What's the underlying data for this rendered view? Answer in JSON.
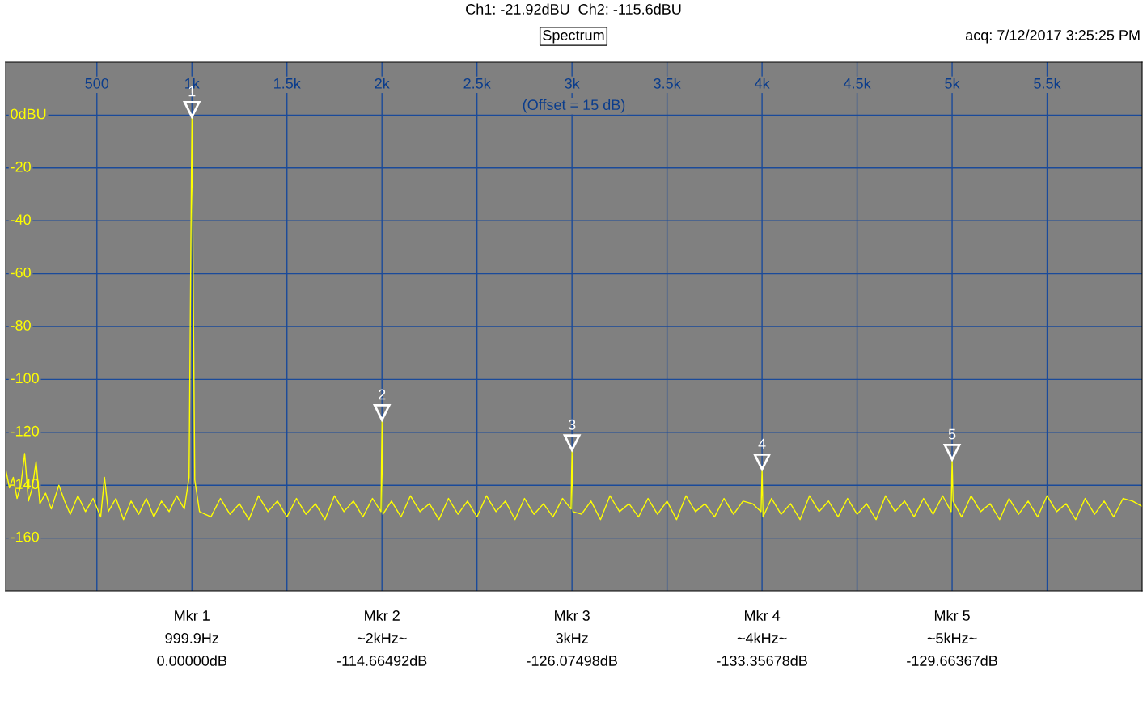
{
  "chart_data": {
    "type": "line",
    "title": "Ch1: -21.92dBU  Ch2: -115.6dBU",
    "subtitle": "Spectrum",
    "annotations": [
      "(Offset = 15 dB)",
      "acq: 7/12/2017 3:25:25 PM",
      "Mkr 1",
      "999.9Hz",
      "0.00000dB",
      "Mkr 2",
      "~2kHz~",
      "-114.66492dB",
      "Mkr 3",
      "3kHz",
      "-126.07498dB",
      "Mkr 4",
      "~4kHz~",
      "-133.35678dB",
      "Mkr 5",
      "~5kHz~",
      "-129.66367dB",
      {
        "text": "1",
        "x": 999.9,
        "y": 0
      },
      {
        "text": "2",
        "x": 2000,
        "y": -114.66492
      },
      {
        "text": "3",
        "x": 3000,
        "y": -126.07498
      },
      {
        "text": "4",
        "x": 4000,
        "y": -133.35678
      },
      {
        "text": "5",
        "x": 5000,
        "y": -129.66367
      }
    ],
    "series": [
      {
        "color": "#ffff00",
        "x": [
          20,
          40,
          60,
          80,
          100,
          120,
          140,
          160,
          180,
          200,
          230,
          260,
          300,
          330,
          360,
          400,
          440,
          480,
          520,
          540,
          560,
          600,
          640,
          680,
          720,
          760,
          800,
          840,
          880,
          920,
          960,
          985,
          999.9,
          1015,
          1040,
          1100,
          1150,
          1200,
          1250,
          1300,
          1350,
          1400,
          1450,
          1500,
          1550,
          1600,
          1650,
          1700,
          1750,
          1800,
          1850,
          1900,
          1950,
          1995,
          2000,
          2005,
          2050,
          2100,
          2150,
          2200,
          2250,
          2300,
          2350,
          2400,
          2450,
          2500,
          2550,
          2600,
          2650,
          2700,
          2750,
          2800,
          2850,
          2900,
          2950,
          2995,
          3000,
          3005,
          3050,
          3100,
          3150,
          3200,
          3250,
          3300,
          3350,
          3400,
          3450,
          3500,
          3550,
          3600,
          3650,
          3700,
          3750,
          3800,
          3850,
          3900,
          3950,
          3995,
          4000,
          4005,
          4050,
          4100,
          4150,
          4200,
          4250,
          4300,
          4350,
          4400,
          4450,
          4500,
          4550,
          4600,
          4650,
          4700,
          4750,
          4800,
          4850,
          4900,
          4950,
          4995,
          5000,
          5005,
          5050,
          5100,
          5150,
          5200,
          5250,
          5300,
          5350,
          5400,
          5450,
          5500,
          5550,
          5600,
          5650,
          5700,
          5750,
          5800,
          5850,
          5900,
          5950,
          6000
        ],
        "values": [
          -134,
          -141,
          -137,
          -145,
          -140,
          -128,
          -146,
          -141,
          -131,
          -147,
          -143,
          -149,
          -140,
          -146,
          -151,
          -144,
          -150,
          -145,
          -152,
          -137,
          -150,
          -145,
          -153,
          -146,
          -151,
          -145,
          -152,
          -146,
          -150,
          -144,
          -149,
          -137,
          0,
          -138,
          -150,
          -152,
          -145,
          -151,
          -147,
          -153,
          -144,
          -150,
          -146,
          -152,
          -145,
          -151,
          -147,
          -153,
          -144,
          -150,
          -146,
          -152,
          -145,
          -150,
          -115,
          -151,
          -146,
          -152,
          -144,
          -150,
          -147,
          -153,
          -145,
          -151,
          -146,
          -152,
          -144,
          -150,
          -146,
          -153,
          -145,
          -151,
          -147,
          -152,
          -145,
          -149,
          -126,
          -150,
          -151,
          -146,
          -153,
          -144,
          -150,
          -147,
          -152,
          -145,
          -151,
          -146,
          -153,
          -144,
          -150,
          -147,
          -152,
          -145,
          -151,
          -146,
          -147,
          -150,
          -133,
          -152,
          -145,
          -151,
          -147,
          -153,
          -144,
          -150,
          -146,
          -152,
          -145,
          -151,
          -147,
          -153,
          -144,
          -150,
          -146,
          -152,
          -145,
          -151,
          -144,
          -150,
          -130,
          -146,
          -152,
          -144,
          -150,
          -147,
          -153,
          -145,
          -151,
          -146,
          -152,
          -144,
          -150,
          -147,
          -153,
          -145,
          -151,
          -146,
          -152,
          -145,
          -146,
          -148
        ]
      }
    ],
    "xlim": [
      20,
      6000
    ],
    "xticks": [
      {
        "value": 500,
        "label": "500"
      },
      {
        "value": 1000,
        "label": "1k"
      },
      {
        "value": 1500,
        "label": "1.5k"
      },
      {
        "value": 2000,
        "label": "2k"
      },
      {
        "value": 2500,
        "label": "2.5k"
      },
      {
        "value": 3000,
        "label": "3k"
      },
      {
        "value": 3500,
        "label": "3.5k"
      },
      {
        "value": 4000,
        "label": "4k"
      },
      {
        "value": 4500,
        "label": "4.5k"
      },
      {
        "value": 5000,
        "label": "5k"
      },
      {
        "value": 5500,
        "label": "5.5k"
      }
    ],
    "ylim": [
      -180,
      20
    ],
    "yticks": [
      {
        "value": 0,
        "label": "0dBU"
      },
      -20,
      -40,
      -60,
      -80,
      -100,
      -120,
      -140,
      -160
    ],
    "grid": true,
    "legend": false
  }
}
